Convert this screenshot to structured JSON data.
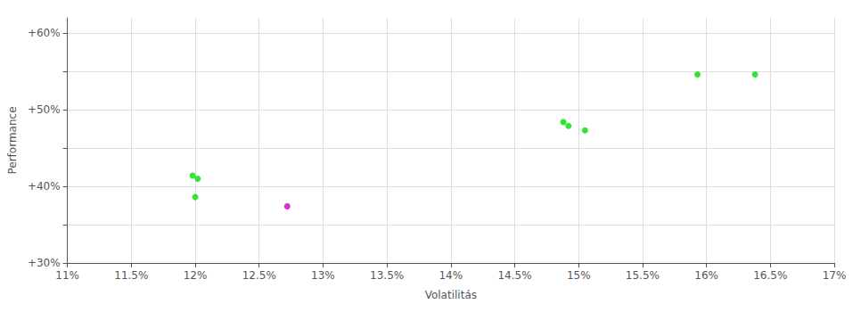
{
  "chart_data": {
    "type": "scatter",
    "xlabel": "Volatilitás",
    "ylabel": "Performance",
    "xlim": [
      0.11,
      0.17
    ],
    "ylim": [
      0.3,
      0.62
    ],
    "xticks": [
      {
        "value": 0.11,
        "label": "11%"
      },
      {
        "value": 0.115,
        "label": "11.5%"
      },
      {
        "value": 0.12,
        "label": "12%"
      },
      {
        "value": 0.125,
        "label": "12.5%"
      },
      {
        "value": 0.13,
        "label": "13%"
      },
      {
        "value": 0.135,
        "label": "13.5%"
      },
      {
        "value": 0.14,
        "label": "14%"
      },
      {
        "value": 0.145,
        "label": "14.5%"
      },
      {
        "value": 0.15,
        "label": "15%"
      },
      {
        "value": 0.155,
        "label": "15.5%"
      },
      {
        "value": 0.16,
        "label": "16%"
      },
      {
        "value": 0.165,
        "label": "16.5%"
      },
      {
        "value": 0.17,
        "label": "17%"
      }
    ],
    "yticks": [
      {
        "value": 0.3,
        "label": "+30%"
      },
      {
        "value": 0.4,
        "label": "+40%"
      },
      {
        "value": 0.5,
        "label": "+50%"
      },
      {
        "value": 0.6,
        "label": "+60%"
      }
    ],
    "grid": true,
    "series": [
      {
        "color": "#00dd00",
        "x": [
          0.1198,
          0.1202,
          0.12,
          0.1488,
          0.1492,
          0.1505,
          0.1593,
          0.1638
        ],
        "values": [
          0.414,
          0.41,
          0.386,
          0.484,
          0.479,
          0.473,
          0.546,
          0.546
        ]
      },
      {
        "color": "#cc00cc",
        "x": [
          0.1272
        ],
        "values": [
          0.374
        ]
      }
    ]
  }
}
